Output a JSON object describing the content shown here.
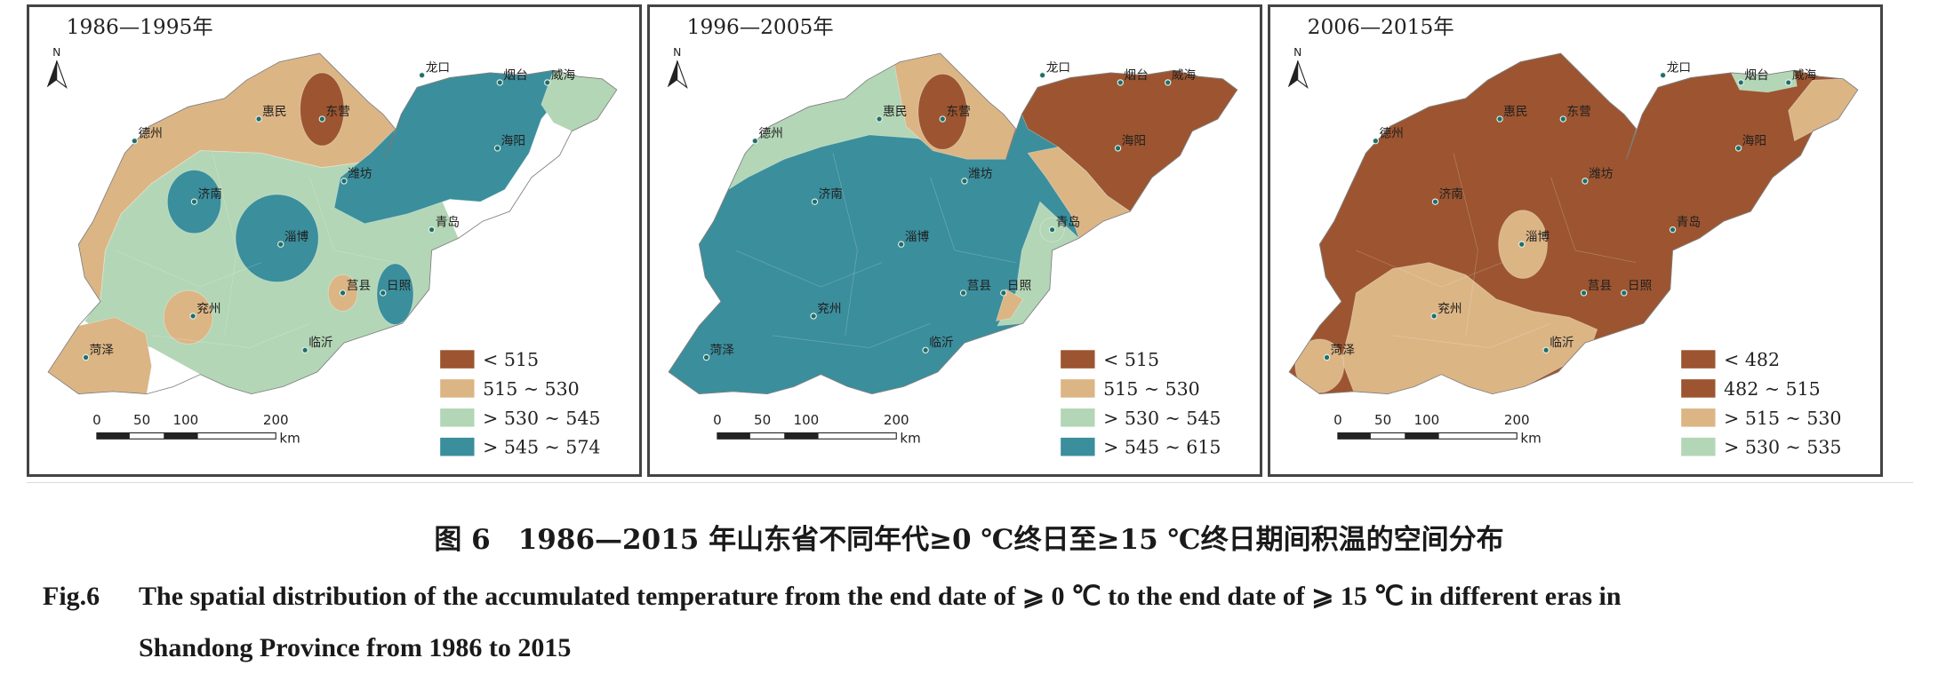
{
  "figure": {
    "panels": [
      {
        "period": "1986—1995年",
        "legend": [
          {
            "label": "< 515",
            "color": "#9c5530"
          },
          {
            "label": "515 ~ 530",
            "color": "#dcb585"
          },
          {
            "label": "> 530 ~ 545",
            "color": "#b3d6b6"
          },
          {
            "label": "> 545 ~ 574",
            "color": "#3b8e9c"
          }
        ],
        "cities": [
          "德州",
          "惠民",
          "东营",
          "龙口",
          "烟台",
          "威海",
          "济南",
          "潍坊",
          "海阳",
          "淄博",
          "青岛",
          "莒县",
          "日照",
          "兖州",
          "菏泽",
          "临沂"
        ]
      },
      {
        "period": "1996—2005年",
        "legend": [
          {
            "label": "< 515",
            "color": "#9c5530"
          },
          {
            "label": "515 ~ 530",
            "color": "#dcb585"
          },
          {
            "label": "> 530 ~ 545",
            "color": "#b3d6b6"
          },
          {
            "label": "> 545 ~ 615",
            "color": "#3b8e9c"
          }
        ],
        "cities": [
          "德州",
          "惠民",
          "东营",
          "龙口",
          "烟台",
          "威海",
          "济南",
          "潍坊",
          "海阳",
          "淄博",
          "青岛",
          "莒县",
          "日照",
          "兖州",
          "菏泽",
          "临沂"
        ]
      },
      {
        "period": "2006—2015年",
        "legend": [
          {
            "label": "< 482",
            "color": "#9c5530"
          },
          {
            "label": "482 ~ 515",
            "color": "#9c5530"
          },
          {
            "label": "> 515 ~ 530",
            "color": "#dcb585"
          },
          {
            "label": "> 530 ~ 535",
            "color": "#b3d6b6"
          }
        ],
        "cities": [
          "德州",
          "惠民",
          "东营",
          "龙口",
          "烟台",
          "威海",
          "济南",
          "潍坊",
          "海阳",
          "淄博",
          "青岛",
          "莒县",
          "日照",
          "兖州",
          "菏泽",
          "临沂"
        ]
      }
    ],
    "north_label": "N",
    "scale": {
      "ticks": [
        "0",
        "50",
        "100",
        "200"
      ],
      "unit": "km"
    },
    "caption_cn": "图 6　1986—2015 年山东省不同年代≥0 ℃终日至≥15 ℃终日期间积温的空间分布",
    "caption_en_label": "Fig.6",
    "caption_en_line1": "The spatial distribution of the accumulated temperature from the end date of  ⩾ 0 ℃ to the end date of  ⩾ 15 ℃ in different eras in",
    "caption_en_line2": "Shandong Province from 1986 to 2015"
  }
}
